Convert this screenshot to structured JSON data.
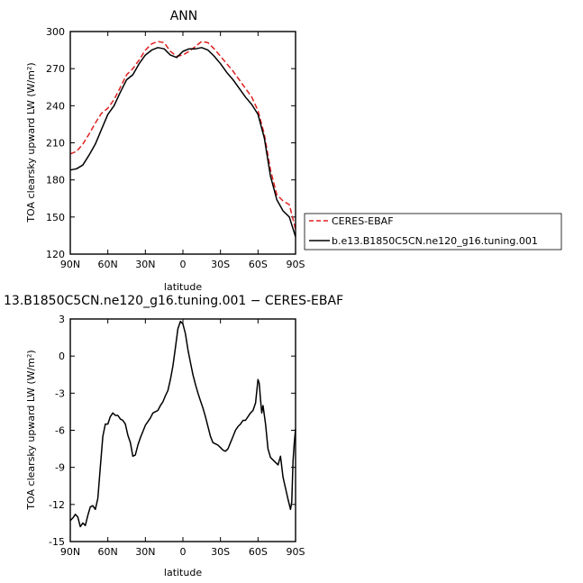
{
  "chart_data": [
    {
      "type": "line",
      "title": "ANN",
      "xlabel": "latitude",
      "ylabel": "TOA clearsky upward LW (W/m²)",
      "xlim": [
        90,
        -90
      ],
      "ylim": [
        120,
        300
      ],
      "yticks": [
        120,
        150,
        180,
        210,
        240,
        270,
        300
      ],
      "xticks": [
        {
          "value": 90,
          "label": "90N"
        },
        {
          "value": 60,
          "label": "60N"
        },
        {
          "value": 30,
          "label": "30N"
        },
        {
          "value": 0,
          "label": "0"
        },
        {
          "value": -30,
          "label": "30S"
        },
        {
          "value": -60,
          "label": "60S"
        },
        {
          "value": -90,
          "label": "90S"
        }
      ],
      "legend": {
        "placement": "right"
      },
      "series": [
        {
          "name": "CERES-EBAF",
          "color": "#e02020",
          "dash": "dashed",
          "x": [
            90,
            85,
            80,
            75,
            70,
            65,
            60,
            55,
            50,
            45,
            40,
            35,
            30,
            25,
            20,
            15,
            10,
            5,
            0,
            -5,
            -10,
            -15,
            -20,
            -25,
            -30,
            -35,
            -40,
            -45,
            -50,
            -55,
            -60,
            -65,
            -70,
            -75,
            -80,
            -85,
            -90
          ],
          "y": [
            201,
            203,
            209,
            217,
            226,
            234,
            238,
            245,
            255,
            265,
            270,
            277,
            285,
            290,
            292,
            291,
            284,
            280,
            281,
            284,
            288,
            292,
            291,
            286,
            280,
            274,
            268,
            261,
            254,
            247,
            236,
            217,
            188,
            168,
            163,
            160,
            140
          ]
        },
        {
          "name": "b.e13.B1850C5CN.ne120_g16.tuning.001",
          "color": "#000000",
          "dash": "solid",
          "x": [
            90,
            85,
            80,
            75,
            70,
            65,
            60,
            55,
            50,
            45,
            40,
            35,
            30,
            25,
            20,
            15,
            10,
            5,
            0,
            -5,
            -10,
            -15,
            -20,
            -25,
            -30,
            -35,
            -40,
            -45,
            -50,
            -55,
            -60,
            -65,
            -70,
            -75,
            -80,
            -85,
            -90
          ],
          "y": [
            188,
            189,
            192,
            200,
            209,
            221,
            233,
            240,
            251,
            261,
            265,
            274,
            281,
            285,
            287,
            286,
            281,
            279,
            284,
            286,
            286,
            287,
            285,
            280,
            274,
            267,
            261,
            254,
            247,
            241,
            233,
            214,
            183,
            164,
            155,
            150,
            134
          ]
        }
      ]
    },
    {
      "type": "line",
      "title": "13.B1850C5CN.ne120_g16.tuning.001 − CERES-EBAF",
      "xlabel": "latitude",
      "ylabel": "TOA clearsky upward LW (W/m²)",
      "xlim": [
        90,
        -90
      ],
      "ylim": [
        -15,
        3
      ],
      "yticks": [
        -15,
        -12,
        -9,
        -6,
        -3,
        0,
        3
      ],
      "xticks": [
        {
          "value": 90,
          "label": "90N"
        },
        {
          "value": 60,
          "label": "60N"
        },
        {
          "value": 30,
          "label": "30N"
        },
        {
          "value": 0,
          "label": "0"
        },
        {
          "value": -30,
          "label": "30S"
        },
        {
          "value": -60,
          "label": "60S"
        },
        {
          "value": -90,
          "label": "90S"
        }
      ],
      "series": [
        {
          "color": "#000000",
          "dash": "solid",
          "x": [
            90,
            88,
            86,
            84,
            82,
            80,
            78,
            76,
            74,
            72,
            70,
            68,
            66,
            64,
            62,
            60,
            58,
            56,
            54,
            52,
            50,
            48,
            46,
            44,
            42,
            40,
            38,
            36,
            34,
            32,
            30,
            28,
            26,
            24,
            22,
            20,
            18,
            16,
            14,
            12,
            10,
            8,
            6,
            4,
            2,
            0,
            -2,
            -4,
            -6,
            -8,
            -10,
            -12,
            -14,
            -16,
            -18,
            -20,
            -22,
            -24,
            -26,
            -28,
            -30,
            -32,
            -34,
            -36,
            -38,
            -40,
            -42,
            -44,
            -46,
            -48,
            -50,
            -52,
            -54,
            -56,
            -58,
            -60,
            -61,
            -62,
            -63,
            -64,
            -66,
            -68,
            -70,
            -72,
            -74,
            -76,
            -78,
            -80,
            -82,
            -84,
            -86,
            -87,
            -88,
            -89,
            -90
          ],
          "y": [
            -13.3,
            -13.1,
            -12.8,
            -13.0,
            -13.8,
            -13.5,
            -13.7,
            -12.9,
            -12.2,
            -12.1,
            -12.4,
            -11.5,
            -9.0,
            -6.5,
            -5.5,
            -5.5,
            -4.9,
            -4.6,
            -4.8,
            -4.8,
            -5.1,
            -5.2,
            -5.5,
            -6.4,
            -7.0,
            -8.1,
            -8.0,
            -7.2,
            -6.6,
            -6.1,
            -5.6,
            -5.3,
            -5.0,
            -4.6,
            -4.5,
            -4.4,
            -4.0,
            -3.7,
            -3.2,
            -2.8,
            -1.9,
            -0.8,
            0.7,
            2.2,
            2.8,
            2.6,
            1.8,
            0.5,
            -0.5,
            -1.5,
            -2.3,
            -3.0,
            -3.6,
            -4.2,
            -4.9,
            -5.7,
            -6.5,
            -7.0,
            -7.1,
            -7.2,
            -7.4,
            -7.6,
            -7.7,
            -7.5,
            -7.0,
            -6.5,
            -6.0,
            -5.7,
            -5.5,
            -5.2,
            -5.2,
            -4.9,
            -4.6,
            -4.4,
            -3.8,
            -1.9,
            -2.2,
            -3.5,
            -4.6,
            -4.0,
            -5.5,
            -7.5,
            -8.2,
            -8.4,
            -8.6,
            -8.8,
            -8.1,
            -9.8,
            -10.7,
            -11.6,
            -12.4,
            -11.8,
            -8.5,
            -7.0,
            -5.9
          ]
        }
      ]
    }
  ]
}
